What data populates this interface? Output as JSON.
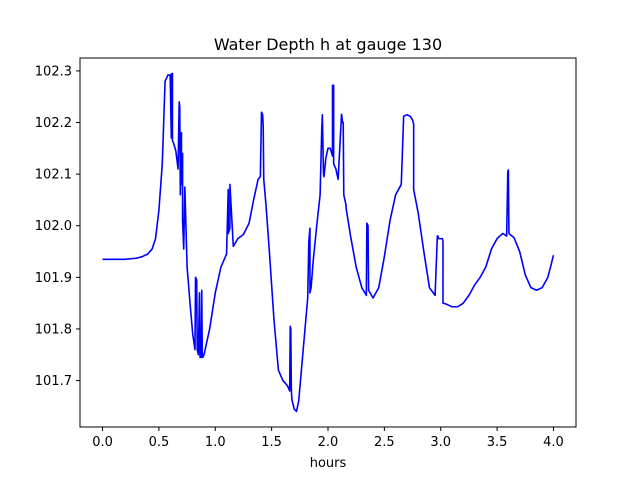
{
  "chart_data": {
    "type": "line",
    "title": "Water Depth h at gauge 130",
    "xlabel": "hours",
    "ylabel": "",
    "xlim": [
      -0.2,
      4.2
    ],
    "ylim": [
      101.61,
      102.325
    ],
    "xticks": [
      0.0,
      0.5,
      1.0,
      1.5,
      2.0,
      2.5,
      3.0,
      3.5,
      4.0
    ],
    "xtick_labels": [
      "0.0",
      "0.5",
      "1.0",
      "1.5",
      "2.0",
      "2.5",
      "3.0",
      "3.5",
      "4.0"
    ],
    "yticks": [
      101.7,
      101.8,
      101.9,
      102.0,
      102.1,
      102.2,
      102.3
    ],
    "ytick_labels": [
      "101.7",
      "101.8",
      "101.9",
      "102.0",
      "102.1",
      "102.2",
      "102.3"
    ],
    "grid": false,
    "series": [
      {
        "color": "#0000ff",
        "x": [
          0.0,
          0.1,
          0.2,
          0.3,
          0.35,
          0.4,
          0.44,
          0.47,
          0.5,
          0.53,
          0.55,
          0.555,
          0.58,
          0.6,
          0.61,
          0.61,
          0.62,
          0.62,
          0.63,
          0.65,
          0.67,
          0.68,
          0.685,
          0.69,
          0.7,
          0.7,
          0.71,
          0.71,
          0.72,
          0.73,
          0.75,
          0.78,
          0.8,
          0.82,
          0.825,
          0.835,
          0.84,
          0.85,
          0.86,
          0.865,
          0.875,
          0.88,
          0.885,
          0.89,
          0.9,
          0.95,
          1.0,
          1.05,
          1.1,
          1.115,
          1.115,
          1.13,
          1.13,
          1.16,
          1.2,
          1.25,
          1.3,
          1.34,
          1.38,
          1.4,
          1.41,
          1.42,
          1.425,
          1.43,
          1.45,
          1.48,
          1.52,
          1.56,
          1.6,
          1.64,
          1.66,
          1.665,
          1.67,
          1.675,
          1.68,
          1.7,
          1.72,
          1.74,
          1.78,
          1.82,
          1.83,
          1.84,
          1.84,
          1.85,
          1.87,
          1.9,
          1.93,
          1.945,
          1.95,
          1.96,
          1.965,
          1.98,
          2.0,
          2.02,
          2.04,
          2.04,
          2.05,
          2.05,
          2.07,
          2.09,
          2.12,
          2.13,
          2.135,
          2.14,
          2.16,
          2.16,
          2.2,
          2.25,
          2.3,
          2.34,
          2.345,
          2.355,
          2.36,
          2.4,
          2.45,
          2.5,
          2.55,
          2.6,
          2.65,
          2.67,
          2.67,
          2.7,
          2.73,
          2.75,
          2.76,
          2.76,
          2.8,
          2.85,
          2.9,
          2.95,
          2.97,
          2.975,
          2.98,
          2.985,
          3.015,
          3.02,
          3.02,
          3.05,
          3.1,
          3.15,
          3.2,
          3.25,
          3.3,
          3.35,
          3.4,
          3.45,
          3.5,
          3.55,
          3.585,
          3.595,
          3.6,
          3.605,
          3.615,
          3.65,
          3.7,
          3.75,
          3.8,
          3.85,
          3.9,
          3.95,
          3.98,
          4.0
        ],
        "y": [
          101.935,
          101.935,
          101.935,
          101.937,
          101.94,
          101.945,
          101.955,
          101.975,
          102.03,
          102.12,
          102.25,
          102.28,
          102.292,
          102.292,
          102.17,
          102.294,
          102.295,
          102.165,
          102.16,
          102.145,
          102.11,
          102.24,
          102.23,
          102.06,
          102.18,
          102.08,
          102.14,
          102.01,
          101.955,
          102.075,
          101.92,
          101.84,
          101.79,
          101.76,
          101.9,
          101.895,
          101.76,
          101.75,
          101.87,
          101.745,
          101.745,
          101.875,
          101.745,
          101.745,
          101.75,
          101.8,
          101.87,
          101.92,
          101.945,
          102.07,
          101.985,
          101.995,
          102.08,
          101.96,
          101.975,
          101.983,
          102.005,
          102.05,
          102.09,
          102.095,
          102.22,
          102.215,
          102.195,
          102.09,
          102.04,
          101.95,
          101.82,
          101.72,
          101.7,
          101.69,
          101.68,
          101.805,
          101.8,
          101.68,
          101.663,
          101.645,
          101.64,
          101.66,
          101.76,
          101.86,
          101.97,
          101.995,
          101.87,
          101.88,
          101.935,
          102.0,
          102.06,
          102.19,
          102.215,
          102.1,
          102.095,
          102.13,
          102.15,
          102.15,
          102.135,
          102.272,
          102.272,
          102.12,
          102.11,
          102.09,
          102.216,
          102.2,
          102.2,
          102.06,
          102.04,
          102.035,
          101.98,
          101.92,
          101.88,
          101.865,
          102.005,
          102.0,
          101.875,
          101.86,
          101.88,
          101.94,
          102.01,
          102.06,
          102.08,
          102.205,
          102.212,
          102.215,
          102.212,
          102.205,
          102.197,
          102.07,
          102.025,
          101.95,
          101.88,
          101.865,
          101.98,
          101.98,
          101.975,
          101.975,
          101.975,
          101.97,
          101.85,
          101.848,
          101.843,
          101.843,
          101.85,
          101.865,
          101.885,
          101.9,
          101.92,
          101.955,
          101.975,
          101.985,
          101.98,
          102.105,
          102.108,
          101.985,
          101.983,
          101.977,
          101.95,
          101.905,
          101.88,
          101.875,
          101.88,
          101.9,
          101.925,
          101.943
        ]
      }
    ]
  }
}
